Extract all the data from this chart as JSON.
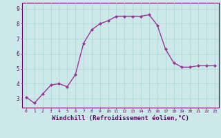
{
  "x": [
    0,
    1,
    2,
    3,
    4,
    5,
    6,
    7,
    8,
    9,
    10,
    11,
    12,
    13,
    14,
    15,
    16,
    17,
    18,
    19,
    20,
    21,
    22,
    23
  ],
  "y": [
    3.1,
    2.7,
    3.3,
    3.9,
    4.0,
    3.8,
    4.6,
    6.7,
    7.6,
    8.0,
    8.2,
    8.5,
    8.5,
    8.5,
    8.5,
    8.6,
    7.9,
    6.3,
    5.4,
    5.1,
    5.1,
    5.2,
    5.2,
    5.2
  ],
  "line_color": "#993399",
  "marker": "D",
  "marker_size": 2.0,
  "line_width": 1.0,
  "background_color": "#cce8e8",
  "grid_color": "#aad4d4",
  "axis_color": "#660066",
  "xlabel": "Windchill (Refroidissement éolien,°C)",
  "xlabel_fontsize": 6.5,
  "ylabel_ticks": [
    3,
    4,
    5,
    6,
    7,
    8,
    9
  ],
  "xlim": [
    -0.5,
    23.5
  ],
  "ylim": [
    2.4,
    9.4
  ],
  "xtick_labels": [
    "0",
    "1",
    "2",
    "3",
    "4",
    "5",
    "6",
    "7",
    "8",
    "9",
    "10",
    "11",
    "12",
    "13",
    "14",
    "15",
    "16",
    "17",
    "18",
    "19",
    "20",
    "21",
    "22",
    "23"
  ],
  "xtick_fontsize": 4.5,
  "ytick_fontsize": 5.5
}
